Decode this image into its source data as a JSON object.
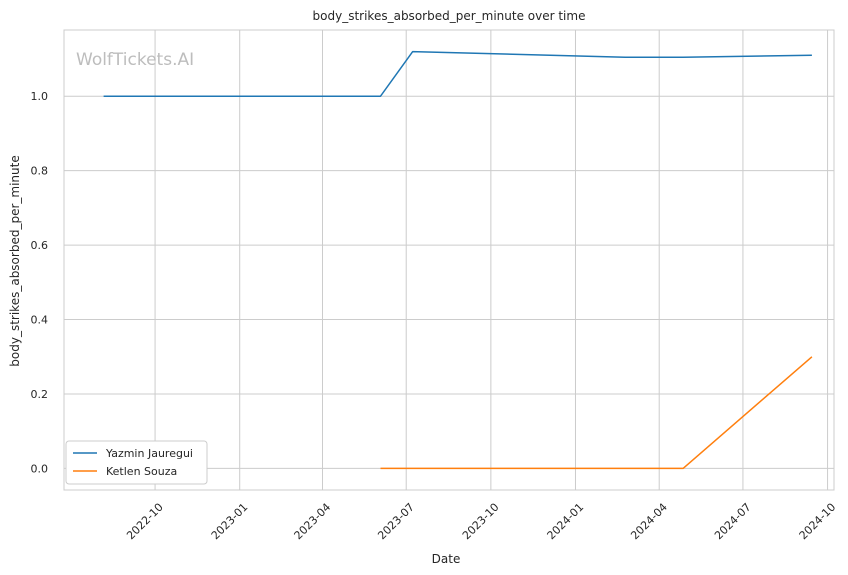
{
  "chart_data": {
    "type": "line",
    "title": "body_strikes_absorbed_per_minute over time",
    "xlabel": "Date",
    "ylabel": "body_strikes_absorbed_per_minute",
    "watermark": "WolfTickets.AI",
    "xlim": [
      "2022-06-24",
      "2024-10-08"
    ],
    "ylim": [
      -0.058,
      1.178
    ],
    "x_ticks": [
      "2022-10-01",
      "2023-01-01",
      "2023-04-01",
      "2023-07-01",
      "2023-10-01",
      "2024-01-01",
      "2024-04-01",
      "2024-07-01",
      "2024-10-01"
    ],
    "x_tick_labels": [
      "2022-10",
      "2023-01",
      "2023-04",
      "2023-07",
      "2023-10",
      "2024-01",
      "2024-04",
      "2024-07",
      "2024-10"
    ],
    "y_ticks": [
      0.0,
      0.2,
      0.4,
      0.6,
      0.8,
      1.0
    ],
    "y_tick_labels": [
      "0.0",
      "0.2",
      "0.4",
      "0.6",
      "0.8",
      "1.0"
    ],
    "grid": true,
    "legend_position": "lower-left",
    "series": [
      {
        "name": "Yazmin Jauregui",
        "color": "#1f77b4",
        "x": [
          "2022-08-06",
          "2023-06-03",
          "2023-07-08",
          "2024-02-24",
          "2024-04-27",
          "2024-09-14"
        ],
        "y": [
          1.0,
          1.0,
          1.12,
          1.105,
          1.105,
          1.11
        ]
      },
      {
        "name": "Ketlen Souza",
        "color": "#ff7f0e",
        "x": [
          "2023-06-03",
          "2024-02-24",
          "2024-04-27",
          "2024-09-14"
        ],
        "y": [
          0.0,
          0.0,
          0.0,
          0.3
        ]
      }
    ]
  }
}
